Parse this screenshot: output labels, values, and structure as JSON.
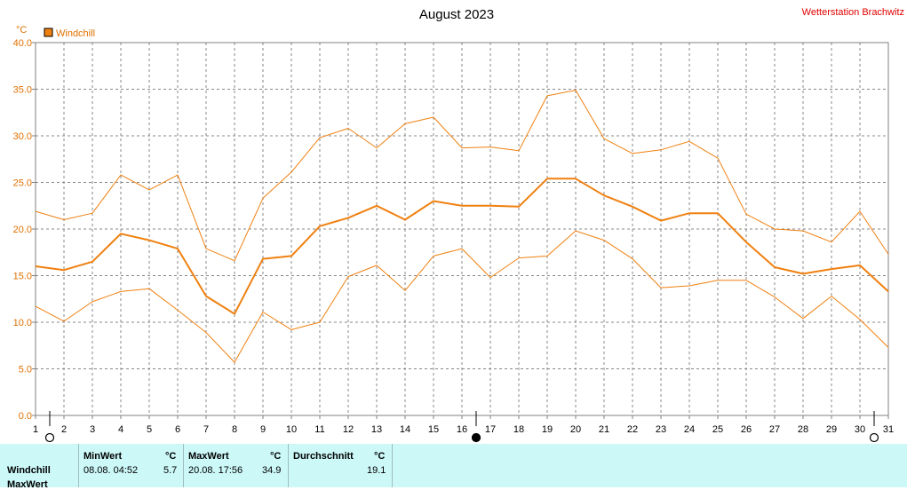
{
  "header": {
    "title": "August 2023",
    "station": "Wetterstation Brachwitz"
  },
  "chart_data": {
    "type": "line",
    "title": "August 2023",
    "ylabel": "°C",
    "legend": [
      "Windchill"
    ],
    "legend_position": "top-left",
    "grid": true,
    "ylim": [
      0,
      40
    ],
    "yticks": [
      "0.0",
      "5.0",
      "10.0",
      "15.0",
      "20.0",
      "25.0",
      "30.0",
      "35.0",
      "40.0"
    ],
    "x": [
      1,
      2,
      3,
      4,
      5,
      6,
      7,
      8,
      9,
      10,
      11,
      12,
      13,
      14,
      15,
      16,
      17,
      18,
      19,
      20,
      21,
      22,
      23,
      24,
      25,
      26,
      27,
      28,
      29,
      30,
      31
    ],
    "series": [
      {
        "name": "Windchill",
        "role": "mean",
        "values": [
          16.0,
          15.6,
          16.5,
          19.5,
          18.8,
          17.9,
          12.8,
          10.9,
          16.8,
          17.1,
          20.3,
          21.2,
          22.5,
          21.0,
          23.0,
          22.5,
          22.5,
          22.4,
          25.4,
          25.4,
          23.6,
          22.4,
          20.9,
          21.7,
          21.7,
          18.6,
          15.9,
          15.2,
          15.7,
          16.1,
          13.3
        ]
      },
      {
        "role": "max",
        "values": [
          21.9,
          21.0,
          21.7,
          25.8,
          24.2,
          25.8,
          17.9,
          16.6,
          23.3,
          26.1,
          29.8,
          30.8,
          28.7,
          31.3,
          32.0,
          28.7,
          28.8,
          28.4,
          34.3,
          34.9,
          29.7,
          28.1,
          28.5,
          29.4,
          27.6,
          21.6,
          20.0,
          19.8,
          18.6,
          21.9,
          17.3
        ]
      },
      {
        "role": "min",
        "values": [
          11.7,
          10.1,
          12.2,
          13.3,
          13.6,
          11.3,
          8.9,
          5.7,
          11.1,
          9.2,
          10.0,
          14.9,
          16.1,
          13.4,
          17.1,
          17.9,
          14.8,
          16.9,
          17.1,
          19.8,
          18.8,
          16.8,
          13.7,
          13.9,
          14.5,
          14.5,
          12.7,
          10.4,
          12.8,
          10.3,
          7.3
        ]
      }
    ],
    "colors": {
      "line": "#f08010",
      "grid": "#888888"
    }
  },
  "stats": {
    "row_label": "Windchill",
    "row_label_2": "MaxWert",
    "min": {
      "header": "MinWert",
      "unit": "°C",
      "datetime": "08.08.  04:52",
      "value": "5.7"
    },
    "max": {
      "header": "MaxWert",
      "unit": "°C",
      "datetime": "20.08.  17:56",
      "value": "34.9"
    },
    "avg": {
      "header": "Durchschnitt",
      "unit": "°C",
      "value": "19.1"
    }
  }
}
